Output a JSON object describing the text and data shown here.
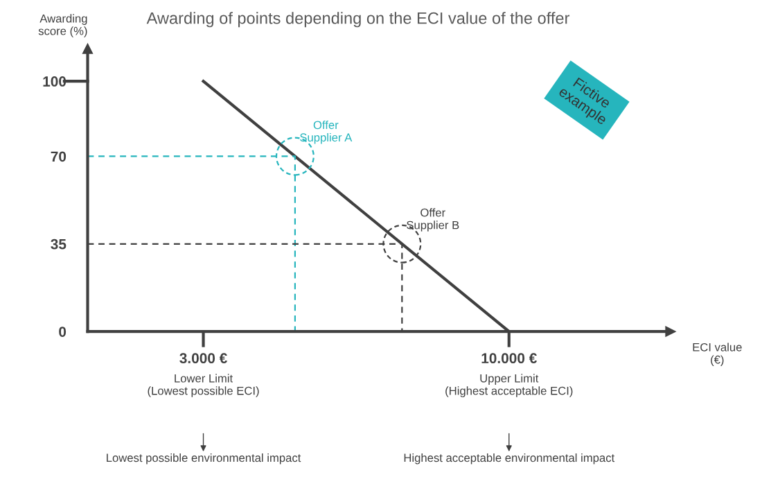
{
  "chart_data": {
    "type": "line",
    "title": "Awarding of points depending on the ECI value of the offer",
    "xlabel": "ECI value\n(€)",
    "ylabel": "Awarding\nscore (%)",
    "xlim": [
      350,
      13700
    ],
    "ylim": [
      0,
      113
    ],
    "xticks": [
      {
        "value": 3000,
        "label": "3.000 €"
      },
      {
        "value": 10000,
        "label": "10.000 €"
      }
    ],
    "yticks": [
      0,
      35,
      70,
      100
    ],
    "grid": false,
    "series": [
      {
        "color": "#404040",
        "x": [
          3000,
          10000
        ],
        "values": [
          100,
          0
        ],
        "line_style": "solid"
      },
      {
        "type": "line",
        "color": "#26b5bd",
        "x": [
          350,
          5100,
          5100
        ],
        "values": [
          70,
          70,
          0
        ],
        "line_style": "dashed"
      },
      {
        "type": "line",
        "color": "#404040",
        "x": [
          350,
          7550,
          7550
        ],
        "values": [
          35,
          35,
          0
        ],
        "line_style": "dashed"
      },
      {
        "type": "scatter",
        "color": "#26b5bd",
        "x": [
          5100
        ],
        "values": [
          70
        ],
        "marker": "circle"
      },
      {
        "type": "scatter",
        "color": "#404040",
        "x": [
          7550
        ],
        "values": [
          35
        ],
        "marker": "circle"
      }
    ],
    "annotations": [
      {
        "text": "Offer\nSupplier A",
        "x": 5100,
        "y": 70
      },
      {
        "text": "Offer\nSupplier B",
        "x": 7550,
        "y": 35
      },
      "Lower Limit\n(Lowest possible ECI)",
      "Upper Limit\n(Highest acceptable ECI)",
      "Lowest possible environmental impact",
      "Highest acceptable environmental impact",
      "Fictive\nexample"
    ]
  }
}
